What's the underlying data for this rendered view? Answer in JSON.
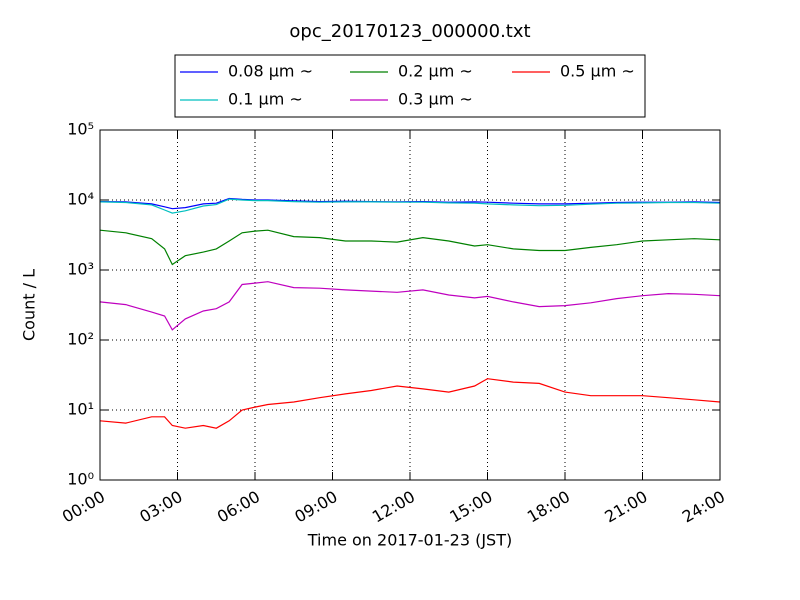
{
  "chart_data": {
    "type": "line",
    "title": "opc_20170123_000000.txt",
    "xlabel": "Time on 2017-01-23 (JST)",
    "ylabel": "Count / L",
    "x": [
      0,
      1,
      2,
      2.5,
      2.8,
      3.3,
      4,
      4.5,
      5,
      5.5,
      6,
      6.5,
      7.5,
      8.5,
      9.5,
      10.5,
      11.5,
      12.5,
      13.5,
      14.5,
      15,
      16,
      17,
      18,
      19,
      20,
      21,
      22,
      23,
      24
    ],
    "series": [
      {
        "name": "0.08 μm ~",
        "color": "#0000ff",
        "values": [
          9500,
          9400,
          8800,
          8000,
          7500,
          7800,
          8800,
          9000,
          10500,
          10200,
          10000,
          10000,
          9700,
          9500,
          9600,
          9500,
          9400,
          9500,
          9300,
          9400,
          9300,
          9000,
          8800,
          8800,
          9000,
          9200,
          9300,
          9300,
          9400,
          9200
        ]
      },
      {
        "name": "0.1 μm ~",
        "color": "#00bfbf",
        "values": [
          9400,
          9200,
          8500,
          7200,
          6500,
          7000,
          8200,
          8600,
          10300,
          10000,
          9800,
          9800,
          9500,
          9300,
          9400,
          9400,
          9300,
          9300,
          9100,
          9000,
          8800,
          8500,
          8300,
          8400,
          8700,
          9000,
          9100,
          9200,
          9200,
          9000
        ]
      },
      {
        "name": "0.2 μm ~",
        "color": "#008000",
        "values": [
          3700,
          3400,
          2800,
          2000,
          1200,
          1600,
          1800,
          2000,
          2600,
          3400,
          3600,
          3700,
          3000,
          2900,
          2600,
          2600,
          2500,
          2900,
          2600,
          2200,
          2300,
          2000,
          1900,
          1900,
          2100,
          2300,
          2600,
          2700,
          2800,
          2700
        ]
      },
      {
        "name": "0.3 μm ~",
        "color": "#bf00bf",
        "values": [
          350,
          320,
          250,
          220,
          140,
          200,
          260,
          280,
          350,
          620,
          650,
          680,
          560,
          550,
          520,
          500,
          480,
          520,
          440,
          400,
          420,
          350,
          300,
          310,
          340,
          390,
          430,
          460,
          450,
          430
        ]
      },
      {
        "name": "0.5 μm ~",
        "color": "#ff0000",
        "values": [
          7,
          6.5,
          8,
          8,
          6,
          5.5,
          6,
          5.5,
          7,
          10,
          11,
          12,
          13,
          15,
          17,
          19,
          22,
          20,
          18,
          22,
          28,
          25,
          24,
          18,
          16,
          16,
          16,
          15,
          14,
          13
        ]
      }
    ],
    "xlim": [
      0,
      24
    ],
    "xticks": [
      {
        "value": 0,
        "label": "00:00"
      },
      {
        "value": 3,
        "label": "03:00"
      },
      {
        "value": 6,
        "label": "06:00"
      },
      {
        "value": 9,
        "label": "09:00"
      },
      {
        "value": 12,
        "label": "12:00"
      },
      {
        "value": 15,
        "label": "15:00"
      },
      {
        "value": 18,
        "label": "18:00"
      },
      {
        "value": 21,
        "label": "21:00"
      },
      {
        "value": 24,
        "label": "24:00"
      }
    ],
    "ylim": [
      1,
      100000
    ],
    "yscale": "log",
    "yticks": [
      {
        "value": 1,
        "label": "10⁰"
      },
      {
        "value": 10,
        "label": "10¹"
      },
      {
        "value": 100,
        "label": "10²"
      },
      {
        "value": 1000,
        "label": "10³"
      },
      {
        "value": 10000,
        "label": "10⁴"
      },
      {
        "value": 100000,
        "label": "10⁵"
      }
    ],
    "grid": true,
    "legend": "top"
  }
}
